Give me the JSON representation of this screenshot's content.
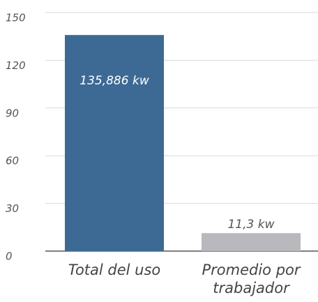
{
  "chart_data": {
    "type": "bar",
    "categories": [
      "Total del uso",
      "Promedio por trabajador"
    ],
    "values": [
      135.886,
      11.3
    ],
    "value_labels": [
      "135,886 kw",
      "11,3 kw"
    ],
    "colors": [
      "#3d6a94",
      "#b9b9bd"
    ],
    "ylim": [
      0,
      150
    ],
    "yticks": [
      0,
      30,
      60,
      90,
      120,
      150
    ],
    "grid": true
  }
}
